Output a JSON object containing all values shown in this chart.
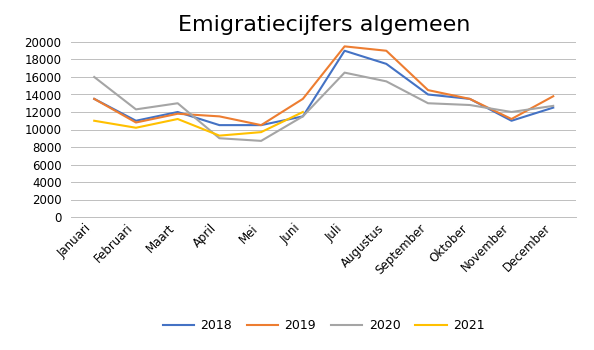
{
  "title": "Emigratiecijfers algemeen",
  "months": [
    "Januari",
    "Februari",
    "Maart",
    "April",
    "Mei",
    "Juni",
    "Juli",
    "Augustus",
    "September",
    "Oktober",
    "November",
    "December"
  ],
  "series": {
    "2018": [
      13500,
      11000,
      12000,
      10500,
      10500,
      11500,
      19000,
      17500,
      14000,
      13500,
      11000,
      12500
    ],
    "2019": [
      13500,
      10800,
      11800,
      11500,
      10500,
      13500,
      19500,
      19000,
      14500,
      13500,
      11200,
      13800
    ],
    "2020": [
      16000,
      12300,
      13000,
      9000,
      8700,
      11500,
      16500,
      15500,
      13000,
      12800,
      12000,
      12700
    ],
    "2021": [
      11000,
      10200,
      11200,
      9300,
      9700,
      12000,
      null,
      null,
      null,
      null,
      null,
      null
    ]
  },
  "colors": {
    "2018": "#4472C4",
    "2019": "#ED7D31",
    "2020": "#A5A5A5",
    "2021": "#FFC000"
  },
  "ylim": [
    0,
    20000
  ],
  "yticks": [
    0,
    2000,
    4000,
    6000,
    8000,
    10000,
    12000,
    14000,
    16000,
    18000,
    20000
  ],
  "background_color": "#FFFFFF",
  "grid_color": "#BFBFBF",
  "title_fontsize": 16,
  "legend_fontsize": 9,
  "tick_fontsize": 8.5,
  "linewidth": 1.5
}
